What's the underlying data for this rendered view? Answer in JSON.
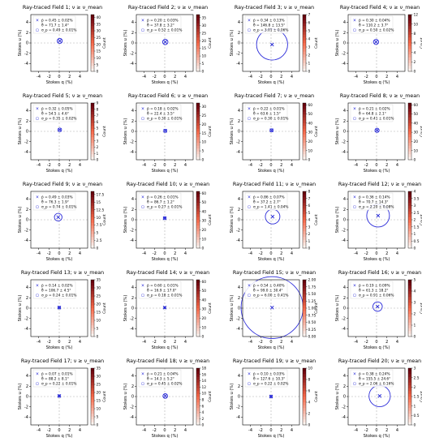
{
  "figure": {
    "xlabel": "Stokes q (%)",
    "ylabel": "Stokes u (%)",
    "cbar_label": "Count",
    "axis_ticks": [
      -4,
      -2,
      0,
      2,
      4
    ],
    "legend_cross_symbol": "×",
    "legend_circle_symbol": "○"
  },
  "colors": {
    "cmap_low": "#fff5f0",
    "cmap_mid": "#fb6a4a",
    "cmap_high": "#67000d",
    "cross": "#1f22d6",
    "circle": "#2b2bd9",
    "guide": "#b0b0b0"
  },
  "chart_data": [
    {
      "type": "heatmap",
      "title": "Ray-traced Field 1; ν ≥ ν_mean",
      "legend": [
        "p̄ = 0.45 ± 0.02%",
        "θ̄ = 71.7 ± 1.4°",
        "σ_p = 0.49 ± 0.01%"
      ],
      "cbar_ticks": [
        0,
        5,
        10,
        15,
        20,
        25,
        30,
        35,
        40
      ],
      "cbar_max": 42,
      "center": [
        0.1,
        0.4
      ],
      "spread": 0.35,
      "sigma_p": 0.49
    },
    {
      "type": "heatmap",
      "title": "Ray-traced Field 2; ν ≥ ν_mean",
      "legend": [
        "p̄ = 0.20 ± 0.03%",
        "θ̄ = 37.8 ± 3.2°",
        "σ_p = 0.52 ± 0.01%"
      ],
      "cbar_ticks": [
        0,
        5,
        10,
        15,
        20,
        25,
        30,
        35
      ],
      "cbar_max": 37,
      "center": [
        0.1,
        0.2
      ],
      "spread": 0.4,
      "sigma_p": 0.52
    },
    {
      "type": "heatmap",
      "title": "Ray-traced Field 3; ν ≥ ν_mean",
      "legend": [
        "p̄ = 0.34 ± 0.13%",
        "θ̄ = 146.8 ± 13.5°",
        "σ_p = 3.01 ± 0.06%"
      ],
      "cbar_ticks": [
        0,
        1,
        2,
        3,
        4,
        5,
        6,
        7
      ],
      "cbar_max": 7,
      "center": [
        0.2,
        -0.3
      ],
      "spread": 2.3,
      "sigma_p": 3.01
    },
    {
      "type": "heatmap",
      "title": "Ray-traced Field 4; ν ≥ ν_mean",
      "legend": [
        "p̄ = 0.30 ± 0.04%",
        "θ̄ = 110.2 ± 3.7°",
        "σ_p = 0.50 ± 0.02%"
      ],
      "cbar_ticks": [
        0,
        2,
        4,
        6,
        8,
        10,
        12
      ],
      "cbar_max": 12,
      "center": [
        -0.1,
        0.2
      ],
      "spread": 0.4,
      "sigma_p": 0.5
    },
    {
      "type": "heatmap",
      "title": "Ray-traced Field 5; ν ≥ ν_mean",
      "legend": [
        "p̄ = 0.32 ± 0.05%",
        "θ̄ = 54.5 ± 4.6°",
        "σ_p = 0.35 ± 0.02%"
      ],
      "cbar_ticks": [
        0,
        1,
        2,
        3,
        4,
        5,
        6,
        7,
        8,
        9
      ],
      "cbar_max": 9,
      "center": [
        0.1,
        0.3
      ],
      "spread": 0.3,
      "sigma_p": 0.35
    },
    {
      "type": "heatmap",
      "title": "Ray-traced Field 6; ν ≥ ν_mean",
      "legend": [
        "p̄ = 0.18 ± 0.02%",
        "θ̄ = 22.4 ± 3.5°",
        "σ_p = 0.30 ± 0.01%"
      ],
      "cbar_ticks": [
        0,
        5,
        10,
        15,
        20,
        25,
        30
      ],
      "cbar_max": 32,
      "center": [
        0.1,
        0.1
      ],
      "spread": 0.25,
      "sigma_p": 0.3
    },
    {
      "type": "heatmap",
      "title": "Ray-traced Field 7; ν ≥ ν_mean",
      "legend": [
        "p̄ = 0.22 ± 0.01%",
        "θ̄ = 63.6 ± 1.5°",
        "σ_p = 0.30 ± 0.01%"
      ],
      "cbar_ticks": [
        0,
        10,
        20,
        30,
        40,
        50,
        60
      ],
      "cbar_max": 62,
      "center": [
        0.1,
        0.2
      ],
      "spread": 0.25,
      "sigma_p": 0.3
    },
    {
      "type": "heatmap",
      "title": "Ray-traced Field 8; ν ≥ ν_mean",
      "legend": [
        "p̄ = 0.21 ± 0.02%",
        "θ̄ = 64.8 ± 2.1°",
        "σ_p = 0.41 ± 0.01%"
      ],
      "cbar_ticks": [
        0,
        10,
        20,
        30,
        40,
        50,
        60
      ],
      "cbar_max": 62,
      "center": [
        0.1,
        0.2
      ],
      "spread": 0.35,
      "sigma_p": 0.41
    },
    {
      "type": "heatmap",
      "title": "Ray-traced Field 9; ν ≥ ν_mean",
      "legend": [
        "p̄ = 0.49 ± 0.03%",
        "θ̄ = 76.3 ± 1.9°",
        "σ_p = 0.74 ± 0.01%"
      ],
      "cbar_ticks": [
        0,
        2.5,
        5.0,
        7.5,
        10.0,
        12.5,
        15.0,
        17.5
      ],
      "cbar_max": 18.5,
      "center": [
        -0.2,
        0.5
      ],
      "spread": 0.8,
      "sigma_p": 0.74
    },
    {
      "type": "heatmap",
      "title": "Ray-traced Field 10; ν ≥ ν_mean",
      "legend": [
        "p̄ = 0.26 ± 0.01%",
        "θ̄ = 86.7 ± 1.2°",
        "σ_p = 0.27 ± 0.01%"
      ],
      "cbar_ticks": [
        0,
        10,
        20,
        30,
        40,
        50,
        60
      ],
      "cbar_max": 62,
      "center": [
        0.0,
        0.3
      ],
      "spread": 0.25,
      "sigma_p": 0.27
    },
    {
      "type": "heatmap",
      "title": "Ray-traced Field 11; ν ≥ ν_mean",
      "legend": [
        "p̄ = 0.86 ± 0.07%",
        "θ̄ = 37.2 ± 2.7°",
        "σ_p = 1.41 ± 0.04%"
      ],
      "cbar_ticks": [
        0,
        1,
        2,
        3,
        4,
        5,
        6,
        7,
        8
      ],
      "cbar_max": 8,
      "center": [
        0.3,
        0.6
      ],
      "spread": 1.1,
      "sigma_p": 1.41
    },
    {
      "type": "heatmap",
      "title": "Ray-traced Field 12; ν ≥ ν_mean",
      "legend": [
        "p̄ = 0.36 ± 0.14%",
        "θ̄ = 70.7 ± 14.3°",
        "σ_p = 2.20 ± 0.08%"
      ],
      "cbar_ticks": [
        0,
        0.5,
        1.0,
        1.5,
        2.0,
        2.5,
        3.0,
        3.5,
        4.0
      ],
      "cbar_max": 4,
      "center": [
        0.3,
        0.8
      ],
      "spread": 1.8,
      "sigma_p": 2.2
    },
    {
      "type": "heatmap",
      "title": "Ray-traced Field 13; ν ≥ ν_mean",
      "legend": [
        "p̄ = 0.14 ± 0.02%",
        "θ̄ = 106.7 ± 4.5°",
        "σ_p = 0.24 ± 0.01%"
      ],
      "cbar_ticks": [
        0,
        5,
        10,
        15,
        20,
        25,
        30,
        35
      ],
      "cbar_max": 35,
      "center": [
        0.0,
        0.1
      ],
      "spread": 0.25,
      "sigma_p": 0.24
    },
    {
      "type": "heatmap",
      "title": "Ray-traced Field 14; ν ≥ ν_mean",
      "legend": [
        "p̄ = 0.60 ± 0.01%",
        "θ̄ = 16.9 ± 17.0°",
        "σ_p = 0.18 ± 0.01%"
      ],
      "cbar_ticks": [
        0,
        10,
        20,
        30,
        40,
        50,
        60
      ],
      "cbar_max": 62,
      "center": [
        0.0,
        0.1
      ],
      "spread": 0.2,
      "sigma_p": 0.18
    },
    {
      "type": "heatmap",
      "title": "Ray-traced Field 15; ν ≥ ν_mean",
      "legend": [
        "p̄ = 0.54 ± 0.40%",
        "θ̄ = 99.0 ± 30.4°",
        "σ_p = 6.00 ± 0.41%"
      ],
      "cbar_ticks": [
        0,
        0.25,
        0.5,
        0.75,
        1.0,
        1.25,
        1.5,
        1.75,
        2.0
      ],
      "cbar_max": 2,
      "center": [
        0.2,
        0.1
      ],
      "spread": 2.6,
      "sigma_p": 6.0
    },
    {
      "type": "heatmap",
      "title": "Ray-traced Field 16; ν ≥ ν_mean",
      "legend": [
        "p̄ = 0.19 ± 0.09%",
        "θ̄ = 61.3 ± 18.2°",
        "σ_p = 0.91 ± 0.06%"
      ],
      "cbar_ticks": [
        0,
        1,
        2,
        3,
        4,
        5
      ],
      "cbar_max": 5,
      "center": [
        0.2,
        0.3
      ],
      "spread": 0.8,
      "sigma_p": 0.91
    },
    {
      "type": "heatmap",
      "title": "Ray-traced Field 17; ν ≥ ν_mean",
      "legend": [
        "p̄ = 0.07 ± 0.01%",
        "θ̄ = 88.2 ± 8.1°",
        "σ_p = 0.22 ± 0.01%"
      ],
      "cbar_ticks": [
        0,
        5,
        10,
        15,
        20,
        25,
        30,
        35
      ],
      "cbar_max": 35,
      "center": [
        0.0,
        0.1
      ],
      "spread": 0.22,
      "sigma_p": 0.22
    },
    {
      "type": "heatmap",
      "title": "Ray-traced Field 18; ν ≥ ν_mean",
      "legend": [
        "p̄ = 0.21 ± 0.04%",
        "θ̄ = 14.3 ± 5.2°",
        "σ_p = 0.45 ± 0.02%"
      ],
      "cbar_ticks": [
        0,
        2,
        4,
        6,
        8,
        10,
        12,
        14,
        16,
        18
      ],
      "cbar_max": 18,
      "center": [
        0.1,
        0.1
      ],
      "spread": 0.4,
      "sigma_p": 0.45
    },
    {
      "type": "heatmap",
      "title": "Ray-traced Field 19; ν ≥ ν_mean",
      "legend": [
        "p̄ = 0.10 ± 0.03%",
        "θ̄ = 127.6 ± 10.3°",
        "σ_p = 0.22 ± 0.02%"
      ],
      "cbar_ticks": [
        0,
        2,
        4,
        6,
        8,
        10
      ],
      "cbar_max": 10,
      "center": [
        0.0,
        0.0
      ],
      "spread": 0.22,
      "sigma_p": 0.22
    },
    {
      "type": "heatmap",
      "title": "Ray-traced Field 20; ν ≥ ν_mean",
      "legend": [
        "p̄ = 0.38 ± 0.24%",
        "θ̄ = 155.5 ± 24.6°",
        "σ_p = 2.06 ± 0.16%"
      ],
      "cbar_ticks": [
        0,
        0.5,
        1.0,
        1.5,
        2.0,
        2.5,
        3.0
      ],
      "cbar_max": 3,
      "center": [
        0.6,
        0.1
      ],
      "spread": 1.4,
      "sigma_p": 2.06
    }
  ]
}
